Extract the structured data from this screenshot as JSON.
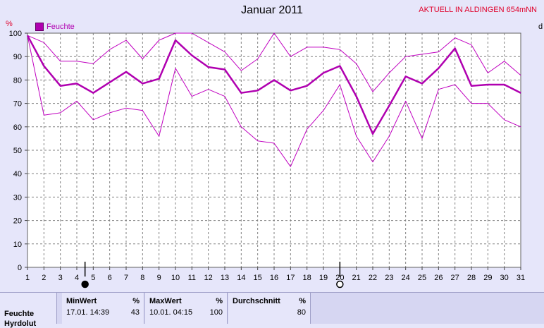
{
  "header": {
    "title": "Januar 2011",
    "station": "AKTUELL IN ALDINGEN 654mNN",
    "cut_label": "d"
  },
  "chart_data": {
    "type": "line",
    "title": "Januar 2011",
    "ylabel": "%",
    "xlabel": "",
    "ylim": [
      0,
      100
    ],
    "yticks": [
      0,
      10,
      20,
      30,
      40,
      50,
      60,
      70,
      80,
      90,
      100
    ],
    "x": [
      1,
      2,
      3,
      4,
      5,
      6,
      7,
      8,
      9,
      10,
      11,
      12,
      13,
      14,
      15,
      16,
      17,
      18,
      19,
      20,
      21,
      22,
      23,
      24,
      25,
      26,
      27,
      28,
      29,
      30,
      31
    ],
    "legend": [
      "Feuchte"
    ],
    "grid": true,
    "series": [
      {
        "name": "Feuchte",
        "role": "mean",
        "color": "#B000B0",
        "values": [
          99,
          86,
          77.5,
          78.5,
          74.5,
          79,
          83.5,
          78.5,
          80.5,
          97,
          90.5,
          85.5,
          84.5,
          74.5,
          75.5,
          80,
          75.5,
          77.5,
          83,
          86,
          73,
          57,
          69,
          81.5,
          78.5,
          85,
          93.5,
          77.5,
          78,
          78,
          74.5
        ]
      },
      {
        "role": "max",
        "color": "#C000C0",
        "values": [
          99,
          96,
          88,
          88,
          87,
          93,
          97,
          89,
          97,
          100,
          100,
          96,
          92,
          84,
          89,
          100,
          90,
          94,
          94,
          93,
          87,
          75,
          83,
          90,
          91,
          92,
          98,
          95,
          83,
          88,
          82
        ]
      },
      {
        "role": "min",
        "color": "#C000C0",
        "values": [
          99,
          65,
          66,
          71,
          63,
          66,
          68,
          67,
          56,
          85,
          73,
          76,
          73,
          60,
          54,
          53,
          43,
          59,
          67,
          78,
          56,
          45,
          56,
          71,
          55,
          76,
          78,
          70,
          70,
          63,
          60
        ]
      }
    ],
    "moon_markers": [
      {
        "day": 4.5,
        "phase": "new"
      },
      {
        "day": 20,
        "phase": "full"
      }
    ]
  },
  "stats": {
    "row_label": "Feuchte",
    "row_label_2": "Hyrdolut",
    "min": {
      "header": "MinWert",
      "unit": "%",
      "date": "17.01. 14:39",
      "value": "43"
    },
    "max": {
      "header": "MaxWert",
      "unit": "%",
      "date": "10.01. 04:15",
      "value": "100"
    },
    "avg": {
      "header": "Durchschnitt",
      "unit": "%",
      "value": "80"
    }
  }
}
